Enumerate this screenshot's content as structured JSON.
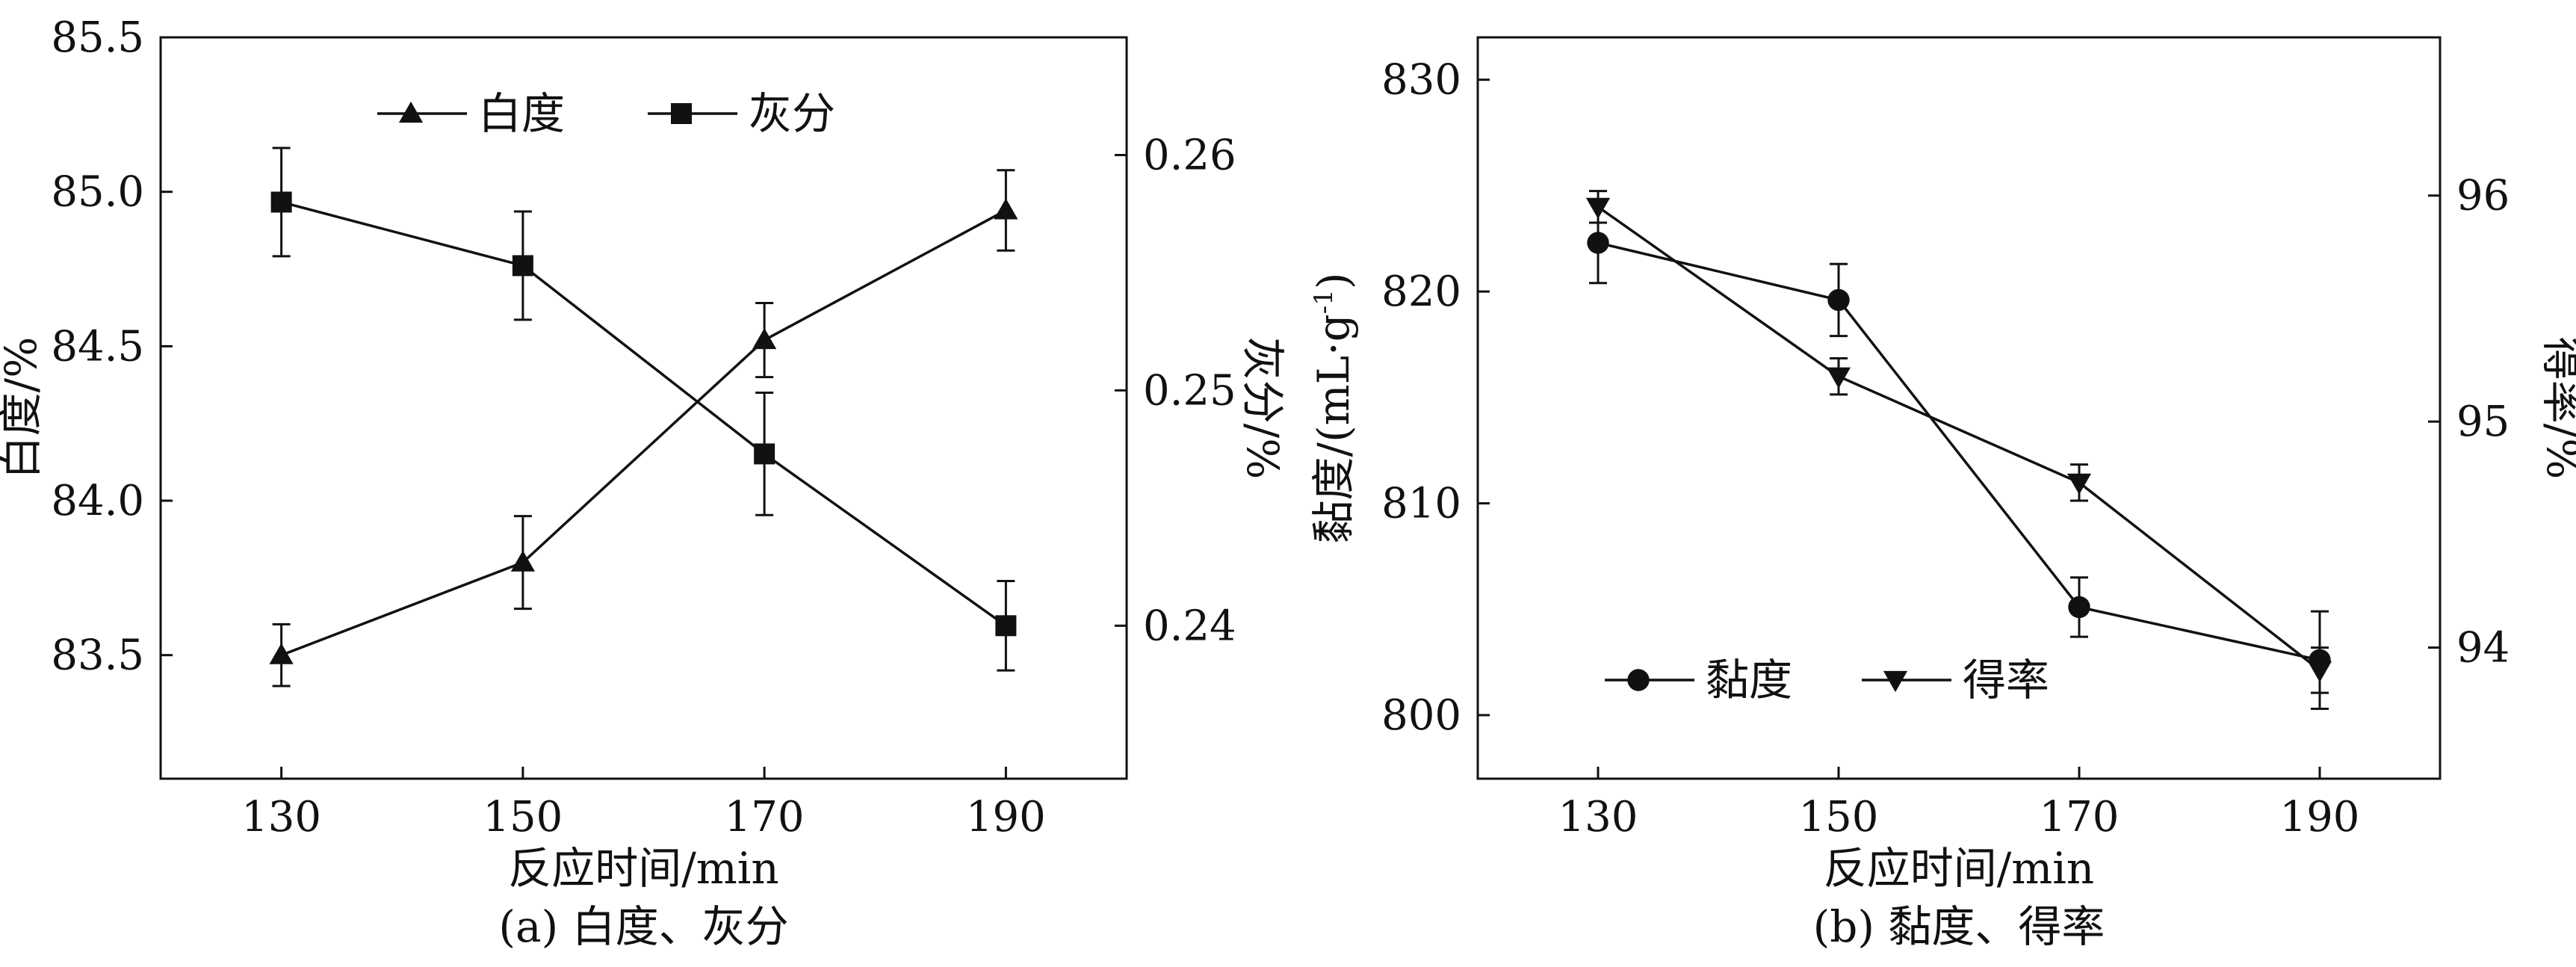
{
  "chart_data": [
    {
      "type": "line",
      "caption": "(a) 白度、灰分",
      "xlabel": "反应时间/min",
      "ylabel": "白度/%",
      "y2label": "灰分/%",
      "x": [
        130,
        150,
        170,
        190
      ],
      "xlim": [
        120,
        200
      ],
      "ylim": [
        83.1,
        85.5
      ],
      "y2lim": [
        0.2335,
        0.265
      ],
      "xticks": [
        130,
        150,
        170,
        190
      ],
      "yticks": [
        "83.5",
        "84.0",
        "84.5",
        "85.0",
        "85.5"
      ],
      "y2ticks": [
        "0.24",
        "0.25",
        "0.26"
      ],
      "legend_position": "top-center",
      "series": [
        {
          "name": "白度",
          "axis": "left",
          "marker": "triangle-up",
          "values": [
            83.5,
            83.8,
            84.52,
            84.94
          ],
          "errors": [
            0.1,
            0.15,
            0.12,
            0.13
          ]
        },
        {
          "name": "灰分",
          "axis": "right",
          "marker": "square",
          "values": [
            0.258,
            0.2553,
            0.2473,
            0.24
          ],
          "errors": [
            0.0023,
            0.0023,
            0.0026,
            0.0019
          ]
        }
      ]
    },
    {
      "type": "line",
      "caption": "(b) 黏度、得率",
      "xlabel": "反应时间/min",
      "ylabel": "黏度/(mL·g",
      "ylabel_sup": "-1",
      "ylabel_tail": ")",
      "y2label": "得率/%",
      "x": [
        130,
        150,
        170,
        190
      ],
      "xlim": [
        120,
        200
      ],
      "ylim": [
        797,
        832
      ],
      "y2lim": [
        93.42,
        96.7
      ],
      "xticks": [
        130,
        150,
        170,
        190
      ],
      "yticks": [
        "800",
        "810",
        "820",
        "830"
      ],
      "y2ticks": [
        "94",
        "95",
        "96"
      ],
      "legend_position": "bottom-left",
      "series": [
        {
          "name": "黏度",
          "axis": "left",
          "marker": "circle",
          "values": [
            822.3,
            819.6,
            805.1,
            802.6
          ],
          "errors": [
            1.9,
            1.7,
            1.4,
            2.3
          ]
        },
        {
          "name": "得率",
          "axis": "right",
          "marker": "triangle-down",
          "values": [
            95.95,
            95.2,
            94.73,
            93.9
          ],
          "errors": [
            0.07,
            0.08,
            0.08,
            0.1
          ]
        }
      ]
    }
  ]
}
